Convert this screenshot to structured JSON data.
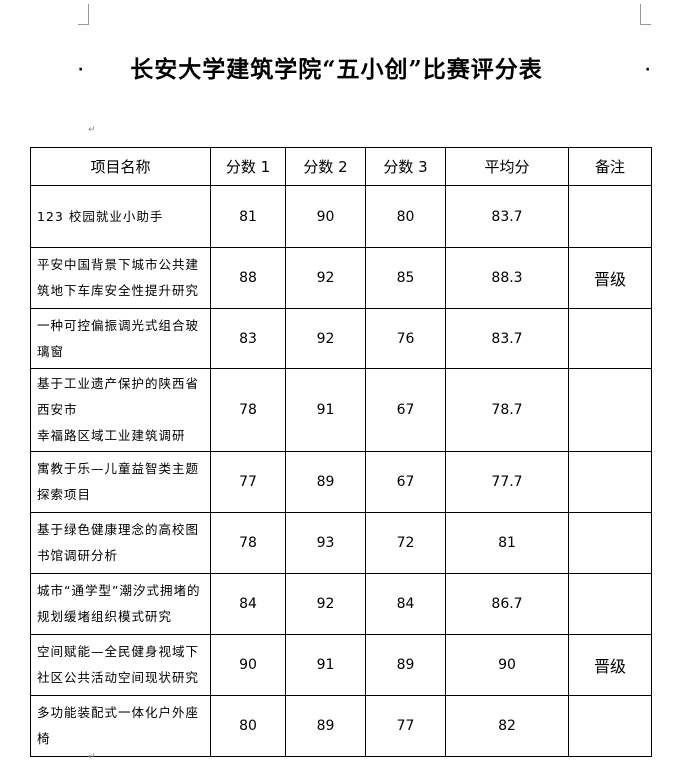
{
  "title": "长安大学建筑学院“五小创”比赛评分表",
  "headers": [
    "项目名称",
    "分数 1",
    "分数 2",
    "分数 3",
    "平均分",
    "备注"
  ],
  "rows": [
    {
      "name": "123 校园就业小助手",
      "s1": "81",
      "s2": "90",
      "s3": "80",
      "avg": "83.7",
      "note": ""
    },
    {
      "name": "平安中国背景下城市公共建筑地下车库安全性提升研究",
      "s1": "88",
      "s2": "92",
      "s3": "85",
      "avg": "88.3",
      "note": "晋级"
    },
    {
      "name": "一种可控偏振调光式组合玻璃窗",
      "s1": "83",
      "s2": "92",
      "s3": "76",
      "avg": "83.7",
      "note": ""
    },
    {
      "name": "基于工业遗产保护的陕西省西安市\n幸福路区域工业建筑调研",
      "s1": "78",
      "s2": "91",
      "s3": "67",
      "avg": "78.7",
      "note": ""
    },
    {
      "name": "寓教于乐—儿童益智类主题探索项目",
      "s1": "77",
      "s2": "89",
      "s3": "67",
      "avg": "77.7",
      "note": ""
    },
    {
      "name": "基于绿色健康理念的高校图书馆调研分析",
      "s1": "78",
      "s2": "93",
      "s3": "72",
      "avg": "81",
      "note": ""
    },
    {
      "name": "城市“通学型”潮汐式拥堵的规划缓堵组织模式研究",
      "s1": "84",
      "s2": "92",
      "s3": "84",
      "avg": "86.7",
      "note": ""
    },
    {
      "name": "空间赋能—全民健身视域下社区公共活动空间现状研究",
      "s1": "90",
      "s2": "91",
      "s3": "89",
      "avg": "90",
      "note": "晋级"
    },
    {
      "name": "多功能装配式一体化户外座椅",
      "s1": "80",
      "s2": "89",
      "s3": "77",
      "avg": "82",
      "note": ""
    }
  ],
  "paragraph_mark": "↵"
}
